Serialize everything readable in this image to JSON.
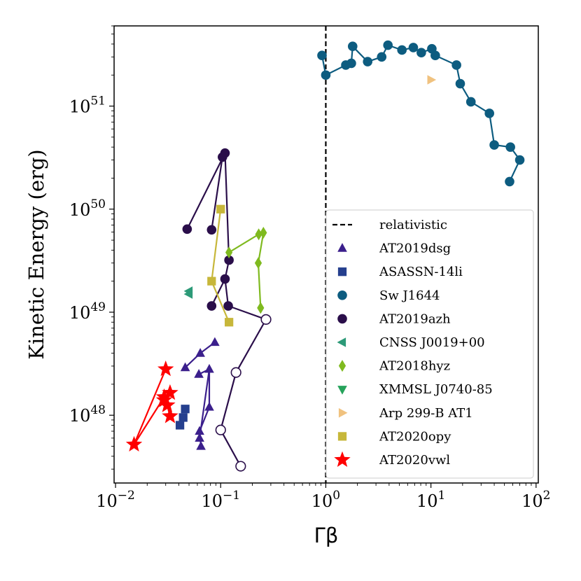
{
  "chart_data": {
    "type": "scatter",
    "xscale": "log",
    "yscale": "log",
    "xlim": [
      0.00969,
      105
    ],
    "ylim": [
      2.2e+47,
      6e+51
    ],
    "xlabel": "Γβ",
    "ylabel": "Kinetic Energy (erg)",
    "x_ticks": [
      {
        "value": 0.01,
        "mant": "10",
        "exp": "−2"
      },
      {
        "value": 0.1,
        "mant": "10",
        "exp": "−1"
      },
      {
        "value": 1,
        "mant": "10",
        "exp": "0"
      },
      {
        "value": 10,
        "mant": "10",
        "exp": "1"
      },
      {
        "value": 100,
        "mant": "10",
        "exp": "2"
      }
    ],
    "y_ticks": [
      {
        "value": 1e+48,
        "mant": "10",
        "exp": "48"
      },
      {
        "value": 1e+49,
        "mant": "10",
        "exp": "49"
      },
      {
        "value": 1e+50,
        "mant": "10",
        "exp": "50"
      },
      {
        "value": 1e+51,
        "mant": "10",
        "exp": "51"
      }
    ],
    "vline": {
      "x": 1,
      "name": "relativistic",
      "style": "dashed",
      "color": "#000000"
    },
    "legend_position": "lower right",
    "series": [
      {
        "name": "AT2019dsg",
        "marker": "triangle-up",
        "color": "#3b1f8c",
        "points": [
          [
            0.046,
            2.9e+48
          ],
          [
            0.064,
            4e+48
          ],
          [
            0.088,
            5.1e+48
          ],
          [
            0.062,
            2.5e+48
          ],
          [
            0.078,
            2.8e+48
          ],
          [
            0.063,
            6e+47
          ],
          [
            0.078,
            1.2e+48
          ],
          [
            0.063,
            7e+47
          ],
          [
            0.065,
            5e+47
          ]
        ],
        "segments": [
          [
            0,
            1,
            2
          ],
          [
            3,
            4,
            5
          ],
          [
            4,
            6,
            7,
            8
          ]
        ]
      },
      {
        "name": "ASASSN-14li",
        "marker": "square",
        "color": "#253f8e",
        "points": [
          [
            0.046,
            1.15e+48
          ],
          [
            0.044,
            9.5e+47
          ],
          [
            0.041,
            8e+47
          ]
        ],
        "segments": []
      },
      {
        "name": "Sw J1644",
        "marker": "circle",
        "color": "#0d5c80",
        "points": [
          [
            0.92,
            3.1e+51
          ],
          [
            1.0,
            2e+51
          ],
          [
            1.55,
            2.5e+51
          ],
          [
            1.75,
            2.6e+51
          ],
          [
            1.8,
            3.8e+51
          ],
          [
            2.5,
            2.7e+51
          ],
          [
            3.4,
            3e+51
          ],
          [
            3.9,
            3.9e+51
          ],
          [
            5.3,
            3.5e+51
          ],
          [
            6.8,
            3.7e+51
          ],
          [
            8.1,
            3.3e+51
          ],
          [
            10.2,
            3.6e+51
          ],
          [
            11.0,
            3.1e+51
          ],
          [
            17.5,
            2.5e+51
          ],
          [
            19.0,
            1.65e+51
          ],
          [
            24.0,
            1.1e+51
          ],
          [
            36.0,
            8.5e+50
          ],
          [
            40.0,
            4.2e+50
          ],
          [
            57.0,
            4e+50
          ],
          [
            70.0,
            3e+50
          ],
          [
            56.0,
            1.85e+50
          ]
        ],
        "segments": [
          [
            0,
            1,
            2,
            3,
            4,
            5,
            6,
            7,
            8,
            9,
            10,
            11,
            12,
            13,
            14,
            15,
            16,
            17,
            18,
            19,
            20
          ]
        ]
      },
      {
        "name": "AT2019azh",
        "marker": "circle",
        "color": "#2a0e4a",
        "points": [
          [
            0.048,
            6.4e+49
          ],
          [
            0.11,
            3.5e+50
          ],
          [
            0.104,
            3.2e+50
          ],
          [
            0.082,
            6.3e+49
          ],
          [
            0.12,
            3.2e+49
          ],
          [
            0.11,
            2.1e+49
          ],
          [
            0.082,
            1.15e+49
          ],
          [
            0.118,
            1.15e+49
          ],
          [
            0.27,
            8.5e+48
          ],
          [
            0.14,
            2.6e+48
          ],
          [
            0.1,
            7.2e+47
          ],
          [
            0.155,
            3.2e+47
          ]
        ],
        "open": [
          8,
          9,
          10,
          11
        ],
        "segments": [
          [
            0,
            1
          ],
          [
            2,
            3
          ],
          [
            1,
            4,
            5,
            6
          ],
          [
            5,
            7,
            8,
            9,
            10,
            11
          ]
        ]
      },
      {
        "name": "CNSS J0019+00",
        "marker": "triangle-left",
        "color": "#2d9a78",
        "points": [
          [
            0.05,
            1.6e+49
          ],
          [
            0.05,
            1.5e+49
          ]
        ],
        "segments": []
      },
      {
        "name": "AT2018hyz",
        "marker": "diamond",
        "color": "#7fba1f",
        "points": [
          [
            0.12,
            3.8e+49
          ],
          [
            0.23,
            5.7e+49
          ],
          [
            0.255,
            5.9e+49
          ],
          [
            0.228,
            3e+49
          ],
          [
            0.24,
            1.1e+49
          ]
        ],
        "segments": [
          [
            0,
            1,
            2,
            3,
            4
          ]
        ]
      },
      {
        "name": "XMMSL J0740-85",
        "marker": "triangle-down",
        "color": "#26a35b",
        "points": [],
        "segments": []
      },
      {
        "name": "Arp 299-B AT1",
        "marker": "triangle-right",
        "color": "#f0c27f",
        "points": [
          [
            10.0,
            1.8e+51
          ]
        ],
        "segments": []
      },
      {
        "name": "AT2020opy",
        "marker": "square",
        "color": "#c7b73a",
        "points": [
          [
            0.1,
            1e+50
          ],
          [
            0.082,
            2e+49
          ],
          [
            0.12,
            8e+48
          ]
        ],
        "segments": [
          [
            0,
            1,
            2
          ]
        ]
      },
      {
        "name": "AT2020vwl",
        "marker": "star",
        "color": "#ff0000",
        "points": [
          [
            0.015,
            5.2e+47
          ],
          [
            0.03,
            2.8e+48
          ],
          [
            0.029,
            1.5e+48
          ],
          [
            0.033,
            1.65e+48
          ],
          [
            0.029,
            1.4e+48
          ],
          [
            0.031,
            1.25e+48
          ],
          [
            0.033,
            9.8e+47
          ]
        ],
        "segments": [
          [
            0,
            1
          ],
          [
            0,
            2,
            3
          ],
          [
            4,
            5,
            6
          ]
        ]
      }
    ]
  }
}
